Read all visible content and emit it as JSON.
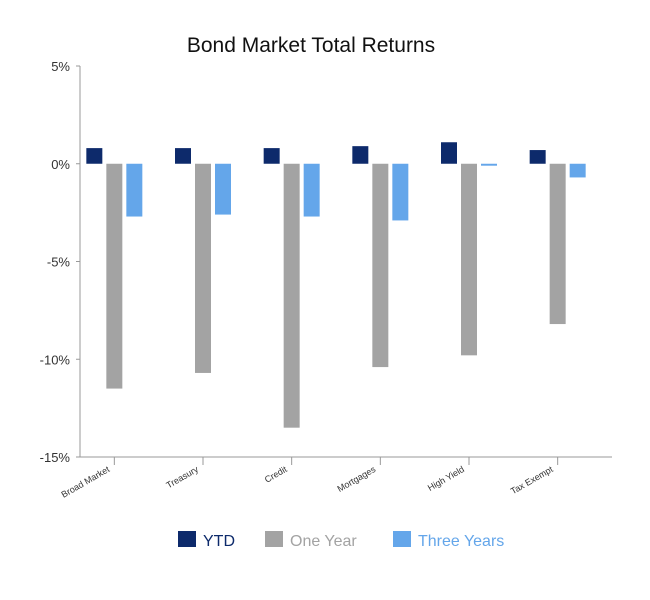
{
  "chart_data": {
    "type": "bar",
    "title": "Bond Market Total Returns",
    "xlabel": "",
    "ylabel": "",
    "categories": [
      "Broad Market",
      "Treasury",
      "Credit",
      "Mortgages",
      "High Yield",
      "Tax Exempt"
    ],
    "series": [
      {
        "name": "YTD",
        "color": "#0d2a6b",
        "values": [
          0.8,
          0.8,
          0.8,
          0.9,
          1.1,
          0.7
        ]
      },
      {
        "name": "One Year",
        "color": "#a3a3a3",
        "values": [
          -11.5,
          -10.7,
          -13.5,
          -10.4,
          -9.8,
          -8.2
        ]
      },
      {
        "name": "Three Years",
        "color": "#64a6ea",
        "values": [
          -2.7,
          -2.6,
          -2.7,
          -2.9,
          -0.1,
          -0.7
        ]
      }
    ],
    "yticks": [
      5,
      0,
      -5,
      -10,
      -15
    ],
    "ytick_labels": [
      "5%",
      "0%",
      "-5%",
      "-10%",
      "-15%"
    ],
    "ylim": [
      -15,
      5
    ],
    "grid": false,
    "legend_position": "bottom"
  }
}
